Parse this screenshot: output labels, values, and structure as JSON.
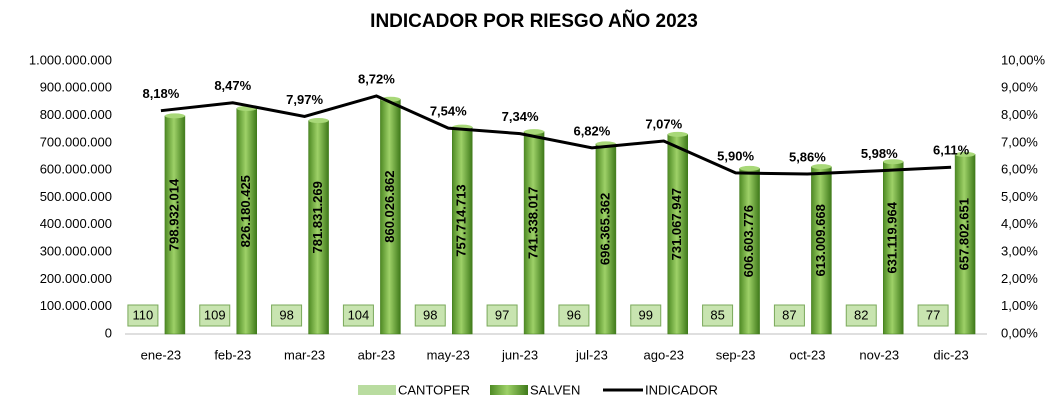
{
  "chart_data": {
    "type": "bar",
    "title": "INDICADOR POR RIESGO AÑO 2023",
    "categories": [
      "ene-23",
      "feb-23",
      "mar-23",
      "abr-23",
      "may-23",
      "jun-23",
      "jul-23",
      "ago-23",
      "sep-23",
      "oct-23",
      "nov-23",
      "dic-23"
    ],
    "series": [
      {
        "name": "CANTOPER",
        "color": "#b9dca0",
        "values": [
          110,
          109,
          98,
          104,
          98,
          97,
          96,
          99,
          85,
          87,
          82,
          77
        ]
      },
      {
        "name": "SALVEN",
        "color": "#6aaa38",
        "values": [
          798932014,
          826180425,
          781831269,
          860026862,
          757714713,
          741338017,
          696365362,
          731067947,
          606603776,
          613009668,
          631119964,
          657802651
        ],
        "value_labels": [
          "798.932.014",
          "826.180.425",
          "781.831.269",
          "860.026.862",
          "757.714.713",
          "741.338.017",
          "696.365.362",
          "731.067.947",
          "606.603.776",
          "613.009.668",
          "631.119.964",
          "657.802.651"
        ]
      },
      {
        "name": "INDICADOR",
        "color": "#000000",
        "type": "line",
        "axis": "y2",
        "values": [
          8.18,
          8.47,
          7.97,
          8.72,
          7.54,
          7.34,
          6.82,
          7.07,
          5.9,
          5.86,
          5.98,
          6.11
        ],
        "value_labels": [
          "8,18%",
          "8,47%",
          "7,97%",
          "8,72%",
          "7,54%",
          "7,34%",
          "6,82%",
          "7,07%",
          "5,90%",
          "5,86%",
          "5,98%",
          "6,11%"
        ]
      }
    ],
    "ylim": [
      0,
      1000000000
    ],
    "yticks": [
      0,
      {
        "value": 100000000,
        "label": "100.000.000"
      },
      {
        "value": 200000000,
        "label": "200.000.000"
      },
      {
        "value": 300000000,
        "label": "300.000.000"
      },
      {
        "value": 400000000,
        "label": "400.000.000"
      },
      {
        "value": 500000000,
        "label": "500.000.000"
      },
      {
        "value": 600000000,
        "label": "600.000.000"
      },
      {
        "value": 700000000,
        "label": "700.000.000"
      },
      {
        "value": 800000000,
        "label": "800.000.000"
      },
      {
        "value": 900000000,
        "label": "900.000.000"
      },
      {
        "value": 1000000000,
        "label": "1.000.000.000"
      }
    ],
    "y2lim": [
      0,
      10
    ],
    "y2ticks": [
      {
        "value": 0,
        "label": "0,00%"
      },
      {
        "value": 1,
        "label": "1,00%"
      },
      {
        "value": 2,
        "label": "2,00%"
      },
      {
        "value": 3,
        "label": "3,00%"
      },
      {
        "value": 4,
        "label": "4,00%"
      },
      {
        "value": 5,
        "label": "5,00%"
      },
      {
        "value": 6,
        "label": "6,00%"
      },
      {
        "value": 7,
        "label": "7,00%"
      },
      {
        "value": 8,
        "label": "8,00%"
      },
      {
        "value": 9,
        "label": "9,00%"
      },
      {
        "value": 10,
        "label": "10,00%"
      }
    ],
    "legend": "bottom"
  }
}
